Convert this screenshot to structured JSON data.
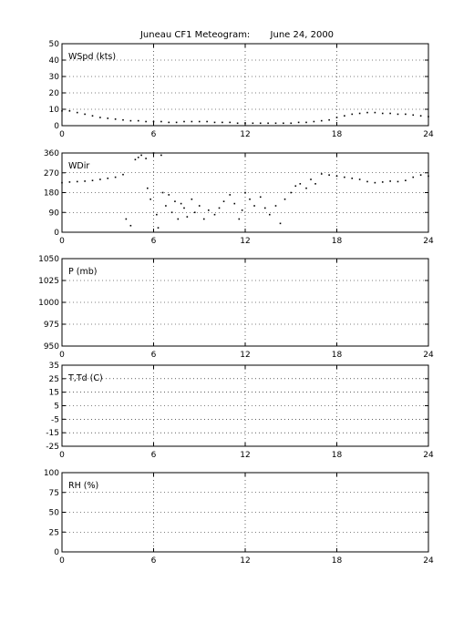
{
  "title": "Juneau CF1 Meteogram:       June 24, 2000",
  "chart_data": [
    {
      "type": "scatter",
      "label": "WSpd (kts)",
      "xlim": [
        0,
        24
      ],
      "xticks": [
        0,
        6,
        12,
        18,
        24
      ],
      "ylim": [
        0,
        50
      ],
      "yticks": [
        0,
        10,
        20,
        30,
        40,
        50
      ],
      "grid": true,
      "series": [
        {
          "x": [
            0,
            0.5,
            1,
            1.5,
            2,
            2.5,
            3,
            3.5,
            4,
            4.5,
            5,
            5.5,
            6,
            6.5,
            7,
            7.5,
            8,
            8.5,
            9,
            9.5,
            10,
            10.5,
            11,
            11.5,
            12,
            12.5,
            13,
            13.5,
            14,
            14.5,
            15,
            15.5,
            16,
            16.5,
            17,
            17.5,
            18,
            18.5,
            19,
            19.5,
            20,
            20.5,
            21,
            21.5,
            22,
            22.5,
            23,
            23.5,
            24
          ],
          "y": [
            9,
            9,
            8,
            7,
            6,
            5,
            4.5,
            4,
            3.5,
            3,
            3,
            2.5,
            2.5,
            2.5,
            2,
            2,
            2.5,
            2.5,
            2.5,
            2.5,
            2,
            2,
            2,
            1.5,
            1.5,
            1.5,
            1.5,
            1.5,
            1.5,
            1.5,
            1.5,
            2,
            2,
            2.5,
            3,
            3.5,
            5,
            6,
            7,
            7.5,
            8,
            8,
            7.5,
            7.5,
            7,
            7,
            6.5,
            6,
            5.5
          ]
        }
      ]
    },
    {
      "type": "scatter",
      "label": "WDir",
      "xlim": [
        0,
        24
      ],
      "xticks": [
        0,
        6,
        12,
        18,
        24
      ],
      "ylim": [
        0,
        360
      ],
      "yticks": [
        0,
        90,
        180,
        270,
        360
      ],
      "grid": true,
      "series": [
        {
          "x": [
            0,
            0.5,
            1,
            1.5,
            2,
            2.5,
            3,
            3.5,
            4,
            4.2,
            4.5,
            4.8,
            5.0,
            5.2,
            5.5,
            5.6,
            5.8,
            6.0,
            6.2,
            6.3,
            6.5,
            6.6,
            6.8,
            7.0,
            7.2,
            7.4,
            7.6,
            7.8,
            8.0,
            8.2,
            8.5,
            8.7,
            9.0,
            9.3,
            9.6,
            10.0,
            10.3,
            10.6,
            11.0,
            11.3,
            11.6,
            11.8,
            12.0,
            12.3,
            12.6,
            13.0,
            13.3,
            13.6,
            14.0,
            14.3,
            14.6,
            15.0,
            15.3,
            15.6,
            16.0,
            16.3,
            16.6,
            17.0,
            17.5,
            18.0,
            18.5,
            19.0,
            19.5,
            20.0,
            20.5,
            21.0,
            21.5,
            22.0,
            22.5,
            23.0,
            23.5,
            24.0
          ],
          "y": [
            225,
            228,
            230,
            232,
            235,
            240,
            245,
            250,
            262,
            60,
            30,
            330,
            340,
            350,
            335,
            200,
            150,
            360,
            80,
            20,
            350,
            180,
            120,
            170,
            90,
            140,
            60,
            130,
            110,
            70,
            150,
            90,
            120,
            60,
            100,
            80,
            110,
            140,
            170,
            130,
            60,
            100,
            180,
            150,
            120,
            160,
            110,
            80,
            120,
            40,
            150,
            180,
            210,
            220,
            200,
            240,
            220,
            265,
            260,
            255,
            250,
            245,
            240,
            230,
            225,
            228,
            232,
            230,
            235,
            250,
            260,
            255
          ]
        }
      ]
    },
    {
      "type": "line",
      "label": "P (mb)",
      "xlim": [
        0,
        24
      ],
      "xticks": [
        0,
        6,
        12,
        18,
        24
      ],
      "ylim": [
        950,
        1050
      ],
      "yticks": [
        950,
        975,
        1000,
        1025,
        1050
      ],
      "grid": true,
      "series": []
    },
    {
      "type": "line",
      "label": "T,Td (C)",
      "xlim": [
        0,
        24
      ],
      "xticks": [
        0,
        6,
        12,
        18,
        24
      ],
      "ylim": [
        -25,
        35
      ],
      "yticks": [
        -25,
        -15,
        -5,
        5,
        15,
        25,
        35
      ],
      "grid": true,
      "series": []
    },
    {
      "type": "line",
      "label": "RH (%)",
      "xlim": [
        0,
        24
      ],
      "xticks": [
        0,
        6,
        12,
        18,
        24
      ],
      "ylim": [
        0,
        100
      ],
      "yticks": [
        0,
        25,
        50,
        75,
        100
      ],
      "grid": true,
      "series": []
    }
  ]
}
